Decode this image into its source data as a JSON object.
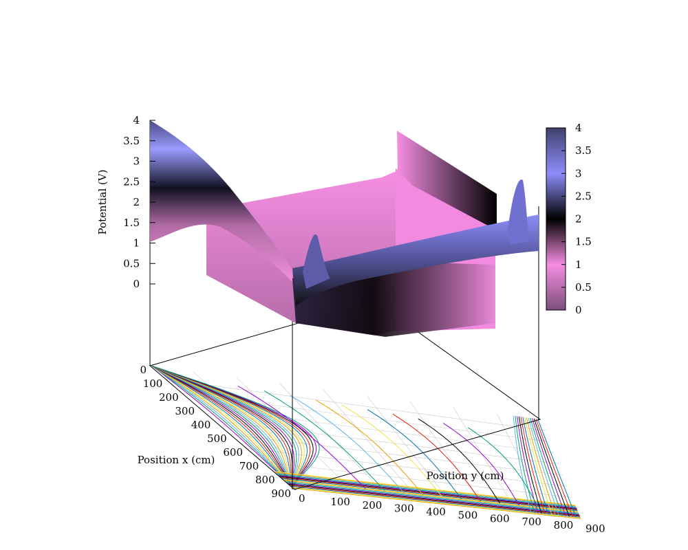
{
  "chart_data": {
    "type": "surface3d",
    "zlabel": "Potential (V)",
    "xlabel": "Position x (cm)",
    "ylabel": "Position y (cm)",
    "x_ticks": [
      "0",
      "100",
      "200",
      "300",
      "400",
      "500",
      "600",
      "700",
      "800",
      "900"
    ],
    "y_ticks": [
      "0",
      "100",
      "200",
      "300",
      "400",
      "500",
      "600",
      "700",
      "800",
      "900"
    ],
    "z_ticks": [
      "0",
      "0.5",
      "1",
      "1.5",
      "2",
      "2.5",
      "3",
      "3.5",
      "4"
    ],
    "colorbar_ticks": [
      "0",
      "0.5",
      "1",
      "1.5",
      "2",
      "2.5",
      "3",
      "3.5",
      "4"
    ],
    "xlim": [
      0,
      900
    ],
    "ylim": [
      0,
      900
    ],
    "zlim": [
      0,
      4
    ],
    "cblim": [
      0,
      4
    ],
    "contours": "on base",
    "grid": "on base",
    "colormap": [
      "#7a4f78",
      "#f58ee2",
      "#000000",
      "#8d8dfb",
      "#40406e"
    ],
    "contour_colors": [
      "#9400d3",
      "#009e73",
      "#56b4e9",
      "#e69f00",
      "#f0e442",
      "#0072b2",
      "#e51e10",
      "#000000"
    ]
  }
}
